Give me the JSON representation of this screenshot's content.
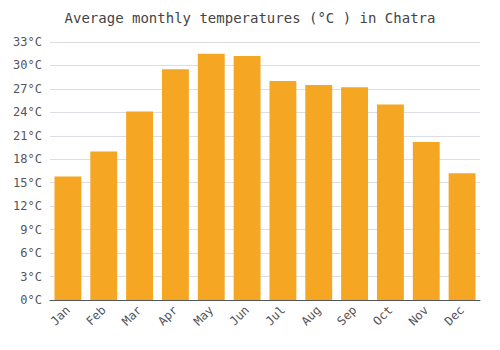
{
  "chart_data": {
    "type": "bar",
    "title": "Average monthly temperatures (°C ) in Chatra",
    "categories": [
      "Jan",
      "Feb",
      "Mar",
      "Apr",
      "May",
      "Jun",
      "Jul",
      "Aug",
      "Sep",
      "Oct",
      "Nov",
      "Dec"
    ],
    "values": [
      15.8,
      19.0,
      24.1,
      29.5,
      31.5,
      31.2,
      28.0,
      27.5,
      27.2,
      25.0,
      20.2,
      16.2
    ],
    "color": "#F5A623",
    "ylim": [
      0,
      33
    ],
    "yticks": [
      {
        "value": 0,
        "label": "0°C"
      },
      {
        "value": 3,
        "label": "3°C"
      },
      {
        "value": 6,
        "label": "6°C"
      },
      {
        "value": 9,
        "label": "9°C"
      },
      {
        "value": 12,
        "label": "12°C"
      },
      {
        "value": 15,
        "label": "15°C"
      },
      {
        "value": 18,
        "label": "18°C"
      },
      {
        "value": 21,
        "label": "21°C"
      },
      {
        "value": 24,
        "label": "24°C"
      },
      {
        "value": 27,
        "label": "27°C"
      },
      {
        "value": 30,
        "label": "30°C"
      },
      {
        "value": 33,
        "label": "33°C"
      }
    ],
    "grid": true
  }
}
